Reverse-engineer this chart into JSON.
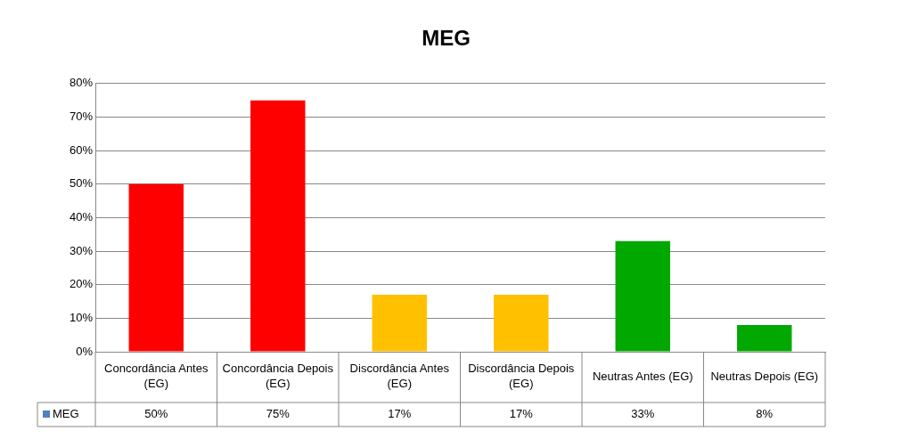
{
  "chart_data": {
    "type": "bar",
    "title": "MEG",
    "categories": [
      "Concordância Antes (EG)",
      "Concordância Depois (EG)",
      "Discordância Antes (EG)",
      "Discordância Depois (EG)",
      "Neutras Antes (EG)",
      "Neutras Depois (EG)"
    ],
    "series": [
      {
        "name": "MEG",
        "color": "#4f81bd",
        "colors": [
          "#ff0000",
          "#ff0000",
          "#ffc000",
          "#ffc000",
          "#00a800",
          "#00a800"
        ],
        "values": [
          50,
          75,
          17,
          17,
          33,
          8
        ],
        "value_labels": [
          "50%",
          "75%",
          "17%",
          "17%",
          "33%",
          "8%"
        ]
      }
    ],
    "ylim": [
      0,
      80
    ],
    "yticks": [
      {
        "value": 0,
        "label": "0%"
      },
      {
        "value": 10,
        "label": "10%"
      },
      {
        "value": 20,
        "label": "20%"
      },
      {
        "value": 30,
        "label": "30%"
      },
      {
        "value": 40,
        "label": "40%"
      },
      {
        "value": 50,
        "label": "50%"
      },
      {
        "value": 60,
        "label": "60%"
      },
      {
        "value": 70,
        "label": "70%"
      },
      {
        "value": 80,
        "label": "80%"
      }
    ],
    "grid": "y",
    "legend": "bottom left"
  }
}
